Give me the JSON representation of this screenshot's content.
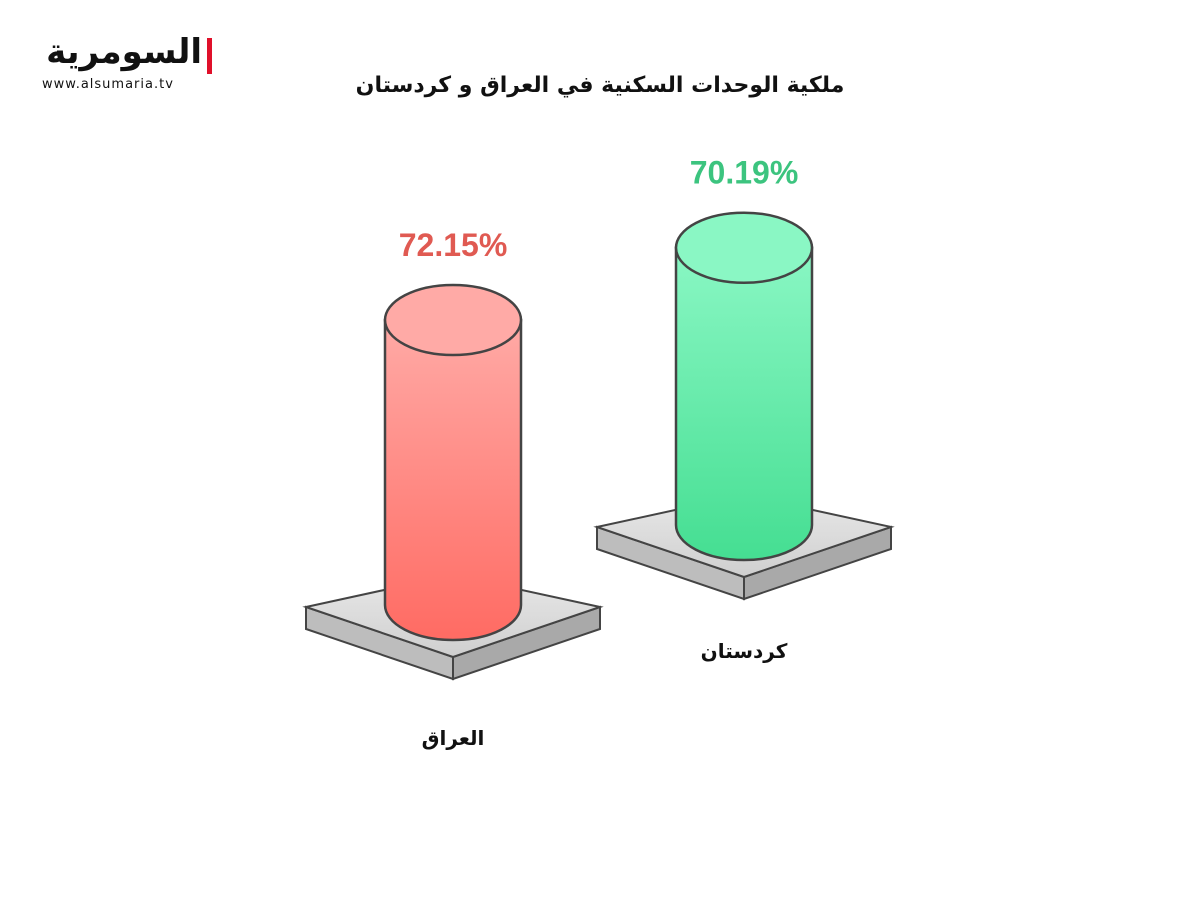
{
  "logo": {
    "name": "السومرية",
    "url": "www.alsumaria.tv",
    "accent": "#e0102a"
  },
  "chart_data": {
    "type": "bar",
    "title": "ملكية الوحدات السكنية في العراق و كردستان",
    "categories": [
      "العراق",
      "كردستان"
    ],
    "values": [
      72.15,
      70.19
    ],
    "labels": [
      "72.15%",
      "70.19%"
    ],
    "unit": "%",
    "style": "3d-cylinder",
    "colors": [
      {
        "top": "#ffaaa6",
        "bottom": "#ff6b63",
        "label": "#e05a52"
      },
      {
        "top": "#8af7c4",
        "bottom": "#45de92",
        "label": "#3cc47f"
      }
    ]
  }
}
